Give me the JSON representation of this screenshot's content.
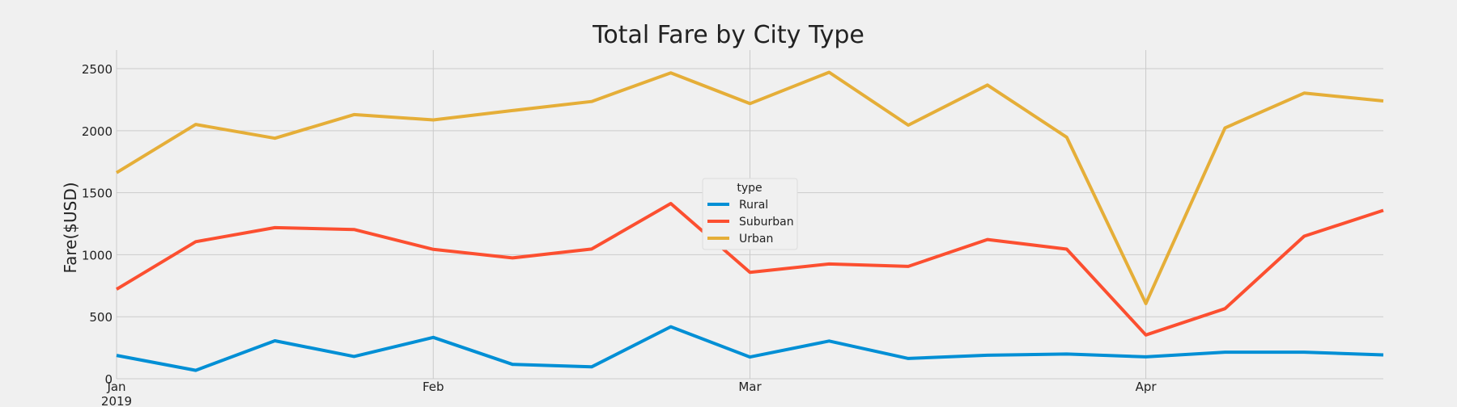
{
  "chart_data": {
    "type": "line",
    "title": "Total Fare by City Type",
    "xlabel": "",
    "ylabel": "Fare($USD)",
    "ylim": [
      0,
      2650
    ],
    "yticks": [
      0,
      500,
      1000,
      1500,
      2000,
      2500
    ],
    "x": [
      "2019-01-06",
      "2019-01-13",
      "2019-01-20",
      "2019-01-27",
      "2019-02-03",
      "2019-02-10",
      "2019-02-17",
      "2019-02-24",
      "2019-03-03",
      "2019-03-10",
      "2019-03-17",
      "2019-03-24",
      "2019-03-31",
      "2019-04-07",
      "2019-04-14",
      "2019-04-21",
      "2019-04-28"
    ],
    "xlim": [
      "2019-01-06",
      "2019-04-28"
    ],
    "xticks": [
      {
        "date": "2019-01-06",
        "label": "Jan",
        "sublabel": "2019"
      },
      {
        "date": "2019-02-03",
        "label": "Feb",
        "sublabel": ""
      },
      {
        "date": "2019-03-03",
        "label": "Mar",
        "sublabel": ""
      },
      {
        "date": "2019-04-07",
        "label": "Apr",
        "sublabel": ""
      }
    ],
    "grid": true,
    "legend": {
      "title": "type",
      "position": "center"
    },
    "series": [
      {
        "name": "Rural",
        "color": "#008fd5",
        "values": [
          187.92,
          67.65,
          306.0,
          179.69,
          333.08,
          115.8,
          95.82,
          419.06,
          175.14,
          303.94,
          163.39,
          189.76,
          199.42,
          176.25,
          214.14,
          214.14,
          191.85
        ]
      },
      {
        "name": "Suburban",
        "color": "#fc4f30",
        "values": [
          721.6,
          1105.13,
          1218.2,
          1203.28,
          1042.79,
          974.34,
          1045.5,
          1412.74,
          858.46,
          925.27,
          905.87,
          1122.2,
          1045.06,
          352.69,
          565.25,
          1149.27,
          1357.75
        ]
      },
      {
        "name": "Urban",
        "color": "#e5ae38",
        "values": [
          1661.68,
          2050.43,
          1939.02,
          2129.51,
          2086.94,
          2162.64,
          2235.07,
          2466.29,
          2218.2,
          2470.93,
          2044.42,
          2368.37,
          1947.46,
          605.98,
          2022.31,
          2303.14,
          2239.56
        ]
      }
    ]
  }
}
